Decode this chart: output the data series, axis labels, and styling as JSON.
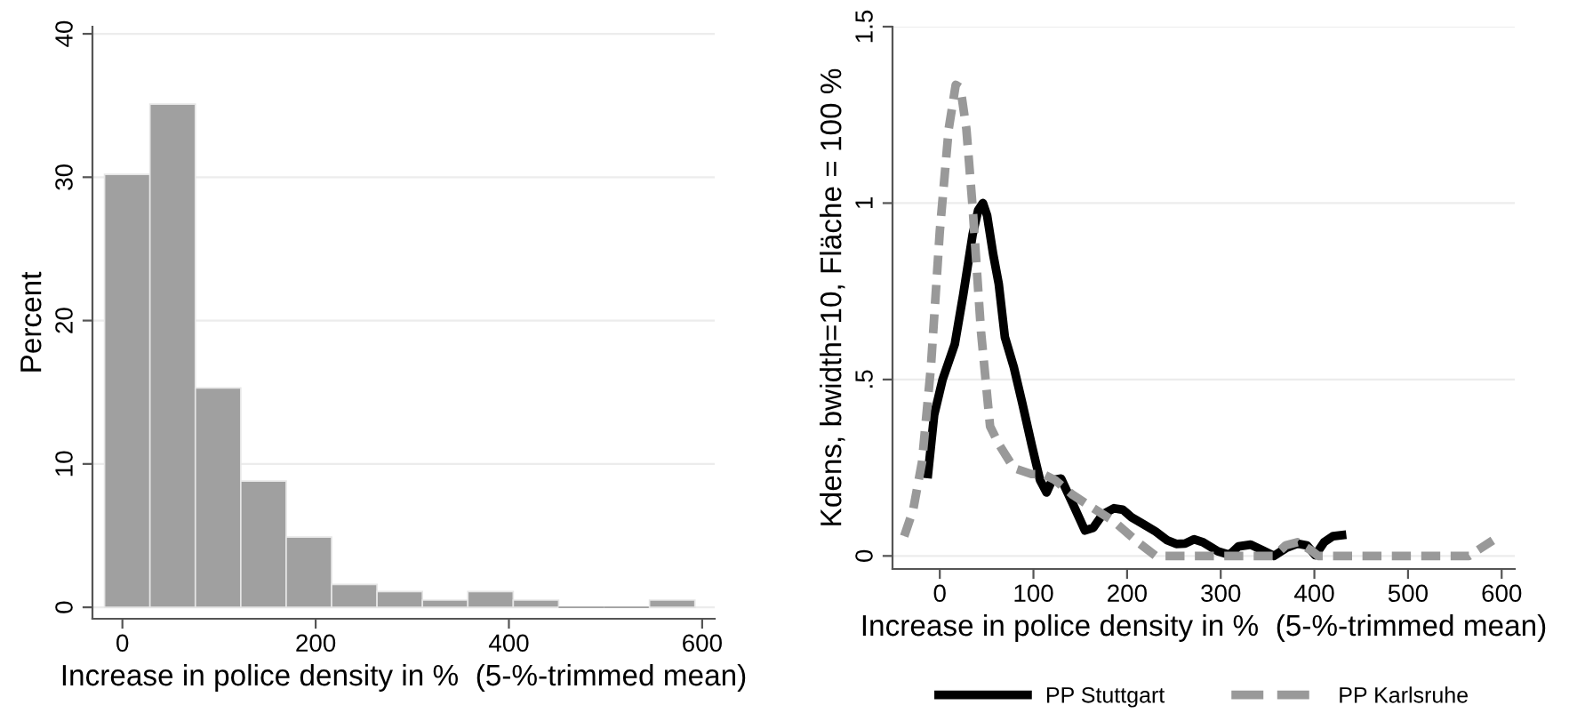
{
  "chart_data": [
    {
      "type": "histogram",
      "xlabel": "Increase in police density in %  (5-%-trimmed mean)",
      "ylabel": "Percent",
      "color": "#a0a0a0",
      "bins": [
        -18.5,
        28.5,
        75.5,
        122.5,
        169.5,
        216.5,
        263.5,
        310.5,
        357.5,
        404.5,
        451.5,
        498.5,
        545.5,
        592.5
      ],
      "values": [
        30.2,
        35.1,
        15.3,
        8.8,
        4.9,
        1.6,
        1.1,
        0.5,
        1.1,
        0.5,
        0,
        0,
        0.5
      ],
      "xlim": [
        -31,
        613
      ],
      "xticks": [
        0,
        200,
        400,
        600
      ],
      "ylim": [
        -0.8,
        40.5
      ],
      "yticks": [
        0,
        10,
        20,
        30,
        40
      ],
      "grid": "y"
    },
    {
      "type": "line",
      "xlabel": "Increase in police density in %  (5-%-trimmed mean)",
      "ylabel": "Kdens, bwidth=10, Fläche = 100 %",
      "xlim": [
        -50.5,
        614
      ],
      "xticks": [
        0,
        100,
        200,
        300,
        400,
        500,
        600
      ],
      "ylim": [
        -0.037,
        1.5
      ],
      "yticks": [
        0,
        {
          "value": 0.5,
          "label": ".5"
        },
        1,
        1.5
      ],
      "grid": "y",
      "legend": "bottom",
      "series": [
        {
          "name": "PP Stuttgart",
          "color": "#000000",
          "line_style": "solid",
          "x": [
            -12.6,
            -6,
            3,
            16,
            25,
            35,
            41,
            46,
            50.5,
            57,
            63,
            69.5,
            79,
            88,
            98,
            107,
            114,
            120,
            129.5,
            142,
            155,
            164,
            174,
            186,
            195.5,
            205,
            218,
            230.5,
            243,
            252.5,
            262,
            271.5,
            281,
            297,
            309.5,
            319,
            332,
            344,
            357,
            369.5,
            382,
            392,
            401,
            410.5,
            420,
            429.5
          ],
          "values": [
            0.232,
            0.4,
            0.5,
            0.6,
            0.74,
            0.91,
            0.98,
            1.0,
            0.965,
            0.855,
            0.77,
            0.62,
            0.535,
            0.434,
            0.316,
            0.215,
            0.18,
            0.215,
            0.219,
            0.148,
            0.072,
            0.08,
            0.118,
            0.135,
            0.131,
            0.109,
            0.089,
            0.069,
            0.044,
            0.034,
            0.035,
            0.047,
            0.039,
            0.013,
            0.003,
            0.027,
            0.032,
            0.017,
            0.0,
            0.022,
            0.035,
            0.03,
            0.002,
            0.039,
            0.056,
            0.059
          ]
        },
        {
          "name": "PP Karlsruhe",
          "color": "#999999",
          "line_style": "dashed",
          "x": [
            -38,
            -28.4,
            -19,
            -9.5,
            0,
            9.5,
            17,
            22,
            28.4,
            35,
            44,
            53.7,
            63,
            79,
            98,
            110.5,
            123,
            142,
            161,
            186,
            211.5,
            230.5,
            243,
            357,
            369.5,
            382,
            398,
            404,
            565,
            590.5
          ],
          "values": [
            0.056,
            0.131,
            0.266,
            0.535,
            0.92,
            1.21,
            1.335,
            1.327,
            1.21,
            0.99,
            0.636,
            0.367,
            0.317,
            0.249,
            0.232,
            0.232,
            0.215,
            0.173,
            0.14,
            0.098,
            0.039,
            0.0,
            0,
            0,
            0.03,
            0.039,
            0.013,
            0,
            0,
            0.044
          ]
        }
      ]
    }
  ]
}
